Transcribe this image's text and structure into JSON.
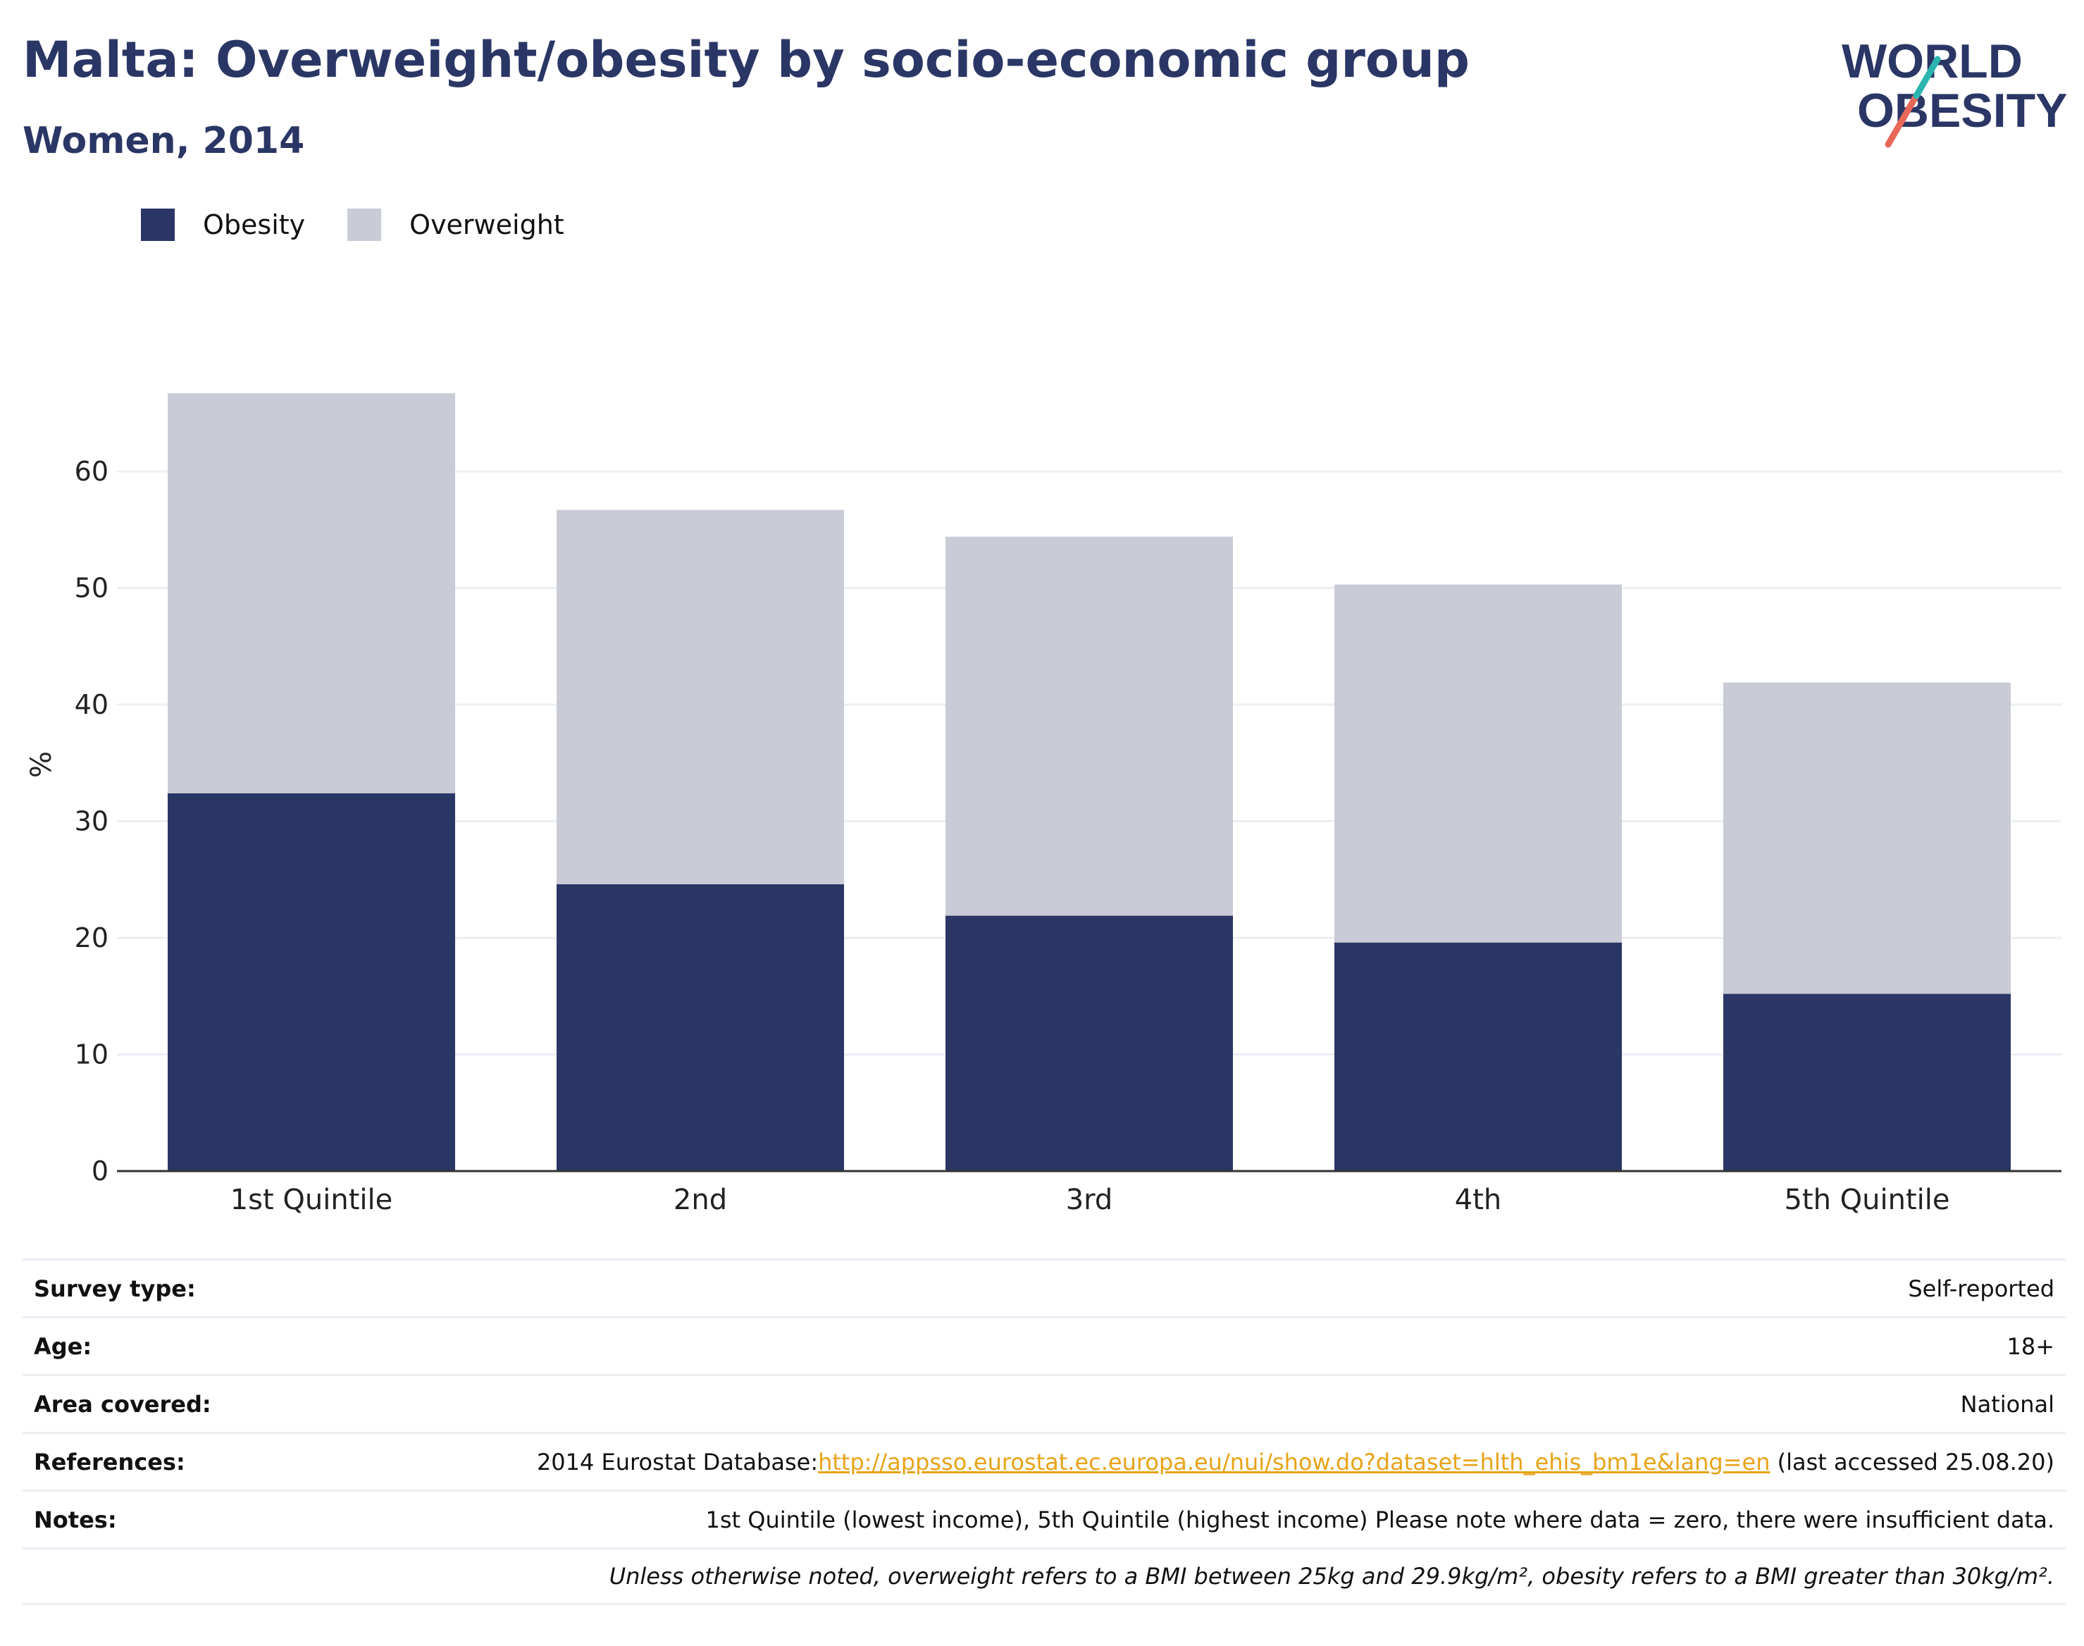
{
  "header": {
    "title": "Malta: Overweight/obesity by socio-economic group",
    "subtitle": "Women, 2014"
  },
  "logo": {
    "line1": "WORLD",
    "line2": "OBESITY",
    "colors": {
      "navy": "#2a3665",
      "teal": "#2bb5b0",
      "coral": "#e8685a"
    }
  },
  "colors": {
    "obesity": "#2a3665",
    "overweight": "#c9cbd7",
    "grid": "#eceef4",
    "axis": "#333333",
    "link": "#e8a317"
  },
  "chart_data": {
    "type": "bar",
    "stacked": true,
    "categories": [
      "1st Quintile",
      "2nd",
      "3rd",
      "4th",
      "5th Quintile"
    ],
    "series": [
      {
        "name": "Obesity",
        "values": [
          32.4,
          24.6,
          21.9,
          19.6,
          15.2
        ]
      },
      {
        "name": "Overweight",
        "values": [
          34.3,
          32.1,
          32.5,
          30.7,
          26.7
        ]
      }
    ],
    "ylabel": "%",
    "xlabel": "",
    "ylim": [
      0,
      70
    ],
    "yticks": [
      0,
      10,
      20,
      30,
      40,
      50,
      60
    ],
    "grid": true,
    "legend": "top-left"
  },
  "meta": {
    "survey_type": {
      "label": "Survey type:",
      "value": "Self-reported"
    },
    "age": {
      "label": "Age:",
      "value": "18+"
    },
    "area": {
      "label": "Area covered:",
      "value": "National"
    },
    "references": {
      "label": "References:",
      "prefix": "2014 Eurostat Database:",
      "link": "http://appsso.eurostat.ec.europa.eu/nui/show.do?dataset=hlth_ehis_bm1e&lang=en",
      "suffix": " (last accessed 25.08.20)"
    },
    "notes": {
      "label": "Notes:",
      "value": "1st Quintile (lowest income), 5th Quintile (highest income) Please note where data = zero, there were insufficient data."
    },
    "definition": "Unless otherwise noted, overweight refers to a BMI between 25kg and 29.9kg/m², obesity refers to a BMI greater than 30kg/m²."
  }
}
